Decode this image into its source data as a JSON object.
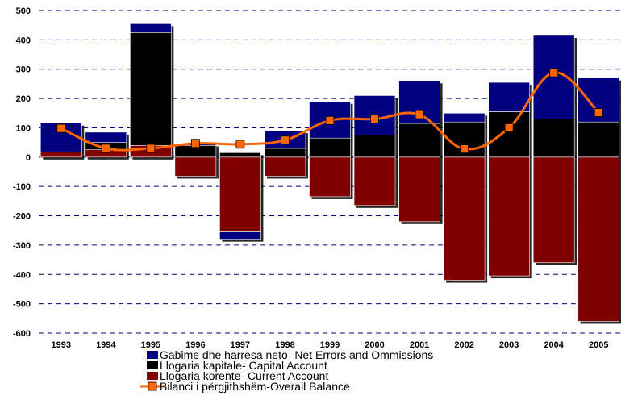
{
  "chart_data": {
    "type": "bar",
    "stacked": true,
    "categories": [
      "1993",
      "1994",
      "1995",
      "1996",
      "1997",
      "1998",
      "1999",
      "2000",
      "2001",
      "2002",
      "2003",
      "2004",
      "2005"
    ],
    "series": [
      {
        "name": "Gabime dhe harresa neto -Net Errors and Ommissions",
        "kind": "bar",
        "color": "#000080",
        "values": [
          98,
          35,
          30,
          5,
          -25,
          60,
          125,
          135,
          145,
          30,
          100,
          285,
          150
        ]
      },
      {
        "name": "Llogaria kapitale- Capital Account",
        "kind": "bar",
        "color": "#000000",
        "values": [
          0,
          25,
          385,
          40,
          15,
          30,
          65,
          75,
          115,
          120,
          155,
          130,
          120
        ]
      },
      {
        "name": "Llogaria korente- Current Account",
        "kind": "bar",
        "color": "#800000",
        "values": [
          18,
          25,
          40,
          -65,
          -255,
          -65,
          -135,
          -165,
          -220,
          -420,
          -405,
          -360,
          -560
        ]
      },
      {
        "name": "Bilanci i përgjithshëm-Overall Balance",
        "kind": "line",
        "color": "#FF6600",
        "values": [
          98,
          30,
          30,
          47,
          44,
          58,
          125,
          130,
          145,
          28,
          100,
          288,
          152
        ]
      }
    ],
    "ylim": [
      -600,
      500
    ],
    "yticks": [
      500,
      400,
      300,
      200,
      100,
      0,
      -100,
      -200,
      -300,
      -400,
      -500,
      -600
    ],
    "grid": "dashed horizontal",
    "legend": "bottom-center"
  }
}
